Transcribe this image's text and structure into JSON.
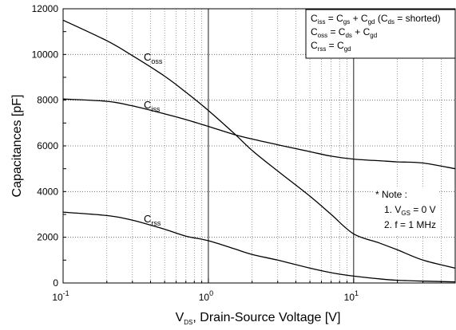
{
  "chart_data": {
    "type": "line",
    "xscale": "log",
    "xlim": [
      0.1,
      50
    ],
    "ylim": [
      0,
      12000
    ],
    "xlabel": {
      "main": "V",
      "sub": "DS",
      "rest": ", Drain-Source Voltage [V]"
    },
    "ylabel": "Capacitances [pF]",
    "yticks": [
      "0",
      "2000",
      "4000",
      "6000",
      "8000",
      "10000",
      "12000"
    ],
    "xticks": [
      {
        "base": "10",
        "exp": "-1"
      },
      {
        "base": "10",
        "exp": "0"
      },
      {
        "base": "10",
        "exp": "1"
      }
    ],
    "grid": true,
    "series": [
      {
        "name": "Coss",
        "label_main": "C",
        "label_sub": "oss",
        "x": [
          0.1,
          0.2,
          0.3,
          0.5,
          0.7,
          1,
          1.5,
          2,
          3,
          5,
          7,
          10,
          15,
          20,
          30,
          50
        ],
        "y": [
          11500,
          10600,
          9950,
          9050,
          8350,
          7550,
          6550,
          5800,
          4900,
          3800,
          3000,
          2150,
          1750,
          1450,
          1000,
          650
        ]
      },
      {
        "name": "Ciss",
        "label_main": "C",
        "label_sub": "iss",
        "x": [
          0.1,
          0.2,
          0.3,
          0.5,
          0.7,
          1,
          1.5,
          2,
          3,
          5,
          7,
          10,
          15,
          20,
          30,
          50
        ],
        "y": [
          8050,
          7950,
          7750,
          7400,
          7150,
          6850,
          6500,
          6300,
          6050,
          5750,
          5550,
          5420,
          5350,
          5300,
          5250,
          5000
        ]
      },
      {
        "name": "Crss",
        "label_main": "C",
        "label_sub": "rss",
        "x": [
          0.1,
          0.2,
          0.3,
          0.5,
          0.7,
          1,
          1.5,
          2,
          3,
          5,
          7,
          10,
          15,
          20,
          30,
          50
        ],
        "y": [
          3100,
          2950,
          2750,
          2350,
          2050,
          1850,
          1500,
          1250,
          1000,
          650,
          450,
          300,
          180,
          120,
          80,
          50
        ]
      }
    ],
    "legend": {
      "position": "top-right",
      "lines": [
        {
          "parts": [
            [
              "C",
              ""
            ],
            [
              "iss",
              "sub"
            ],
            [
              " = C",
              ""
            ],
            [
              "gs",
              "sub"
            ],
            [
              " + C",
              ""
            ],
            [
              "gd",
              "sub"
            ],
            [
              " (C",
              ""
            ],
            [
              "ds",
              "sub"
            ],
            [
              " = shorted)",
              ""
            ]
          ]
        },
        {
          "parts": [
            [
              "C",
              ""
            ],
            [
              "oss",
              "sub"
            ],
            [
              " = C",
              ""
            ],
            [
              "ds",
              "sub"
            ],
            [
              " + C",
              ""
            ],
            [
              "gd",
              "sub"
            ]
          ]
        },
        {
          "parts": [
            [
              "C",
              ""
            ],
            [
              "rss",
              "sub"
            ],
            [
              " = C",
              ""
            ],
            [
              "gd",
              "sub"
            ]
          ]
        }
      ]
    },
    "note": {
      "title": "* Note :",
      "item1": {
        "prefix": "1. V",
        "sub": "GS",
        "rest": " = 0 V"
      },
      "item2": "2. f = 1 MHz"
    }
  }
}
